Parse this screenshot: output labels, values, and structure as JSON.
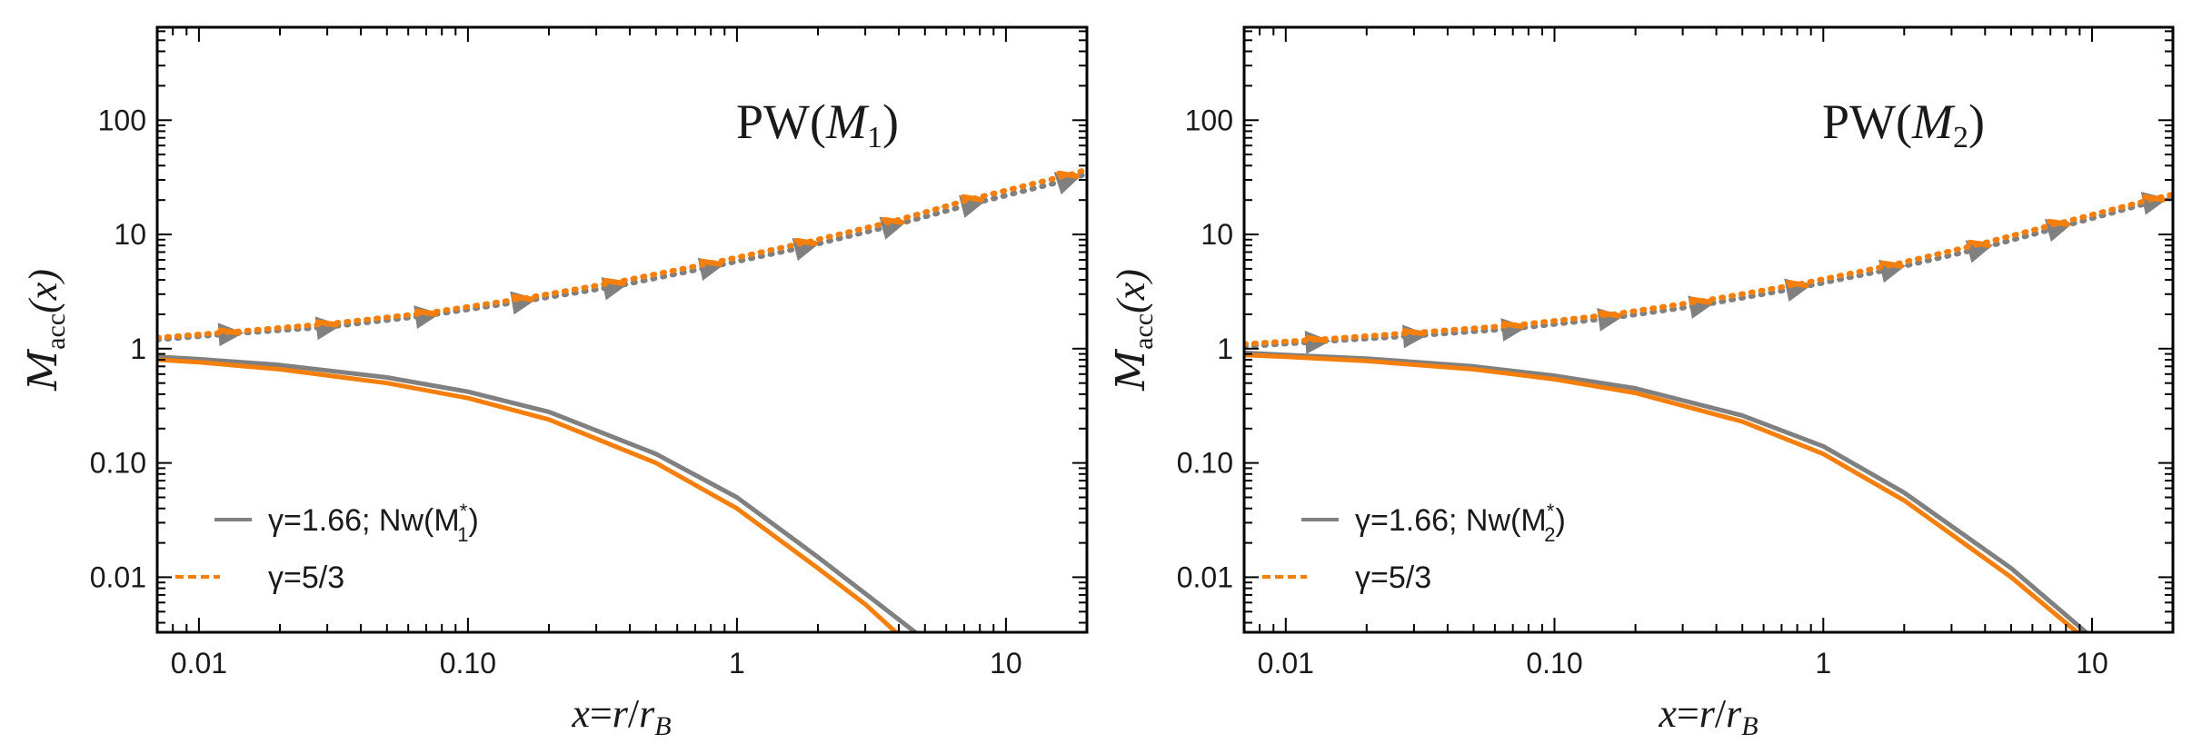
{
  "colors": {
    "gamma166": "#808080",
    "gamma53": "#f57f0d"
  },
  "chart_data": [
    {
      "type": "line",
      "title": "PW(M1)",
      "title_main": "PW(",
      "title_var": "M",
      "title_sub": "1",
      "title_close": ")",
      "xlabel": "x=r/r_B",
      "xlabel_parts": {
        "a": "x",
        "eq": "=",
        "b": "r",
        "slash": "/",
        "c": "r",
        "sub": "B"
      },
      "ylabel": "M_acc(x)",
      "ylabel_parts": {
        "sym": "M",
        "sub": "acc",
        "arg": "(x)"
      },
      "x_scale": "log",
      "y_scale": "log",
      "xlim": [
        0.007,
        20
      ],
      "ylim": [
        0.0033,
        650
      ],
      "x_ticks": [
        0.01,
        0.1,
        1,
        10
      ],
      "x_tick_labels": [
        "0.01",
        "0.10",
        "1",
        "10"
      ],
      "y_ticks": [
        0.01,
        0.1,
        1,
        10,
        100
      ],
      "y_tick_labels": [
        "0.01",
        "0.10",
        "1",
        "10",
        "100"
      ],
      "grid": false,
      "legend_position": "bottom-left",
      "legend": [
        {
          "text_prefix": "γ=1.66; Nw(M",
          "text_sup": "*",
          "text_sub": "1",
          "text_suffix": ")",
          "style": "solid",
          "color": "#808080"
        },
        {
          "text_prefix": "γ=5/3",
          "style": "dashed",
          "color": "#f57f0d"
        }
      ],
      "series": [
        {
          "legend_index": 0,
          "style": "solid",
          "color": "#808080",
          "x": [
            0.007,
            0.01,
            0.02,
            0.05,
            0.1,
            0.2,
            0.5,
            1,
            2,
            3,
            4.6
          ],
          "y": [
            0.85,
            0.81,
            0.72,
            0.56,
            0.42,
            0.28,
            0.12,
            0.05,
            0.015,
            0.0072,
            0.0033
          ]
        },
        {
          "legend_index": 1,
          "style": "solid",
          "color": "#f57f0d",
          "x": [
            0.007,
            0.01,
            0.02,
            0.05,
            0.1,
            0.2,
            0.5,
            1,
            2,
            3,
            3.9
          ],
          "y": [
            0.8,
            0.76,
            0.66,
            0.5,
            0.37,
            0.24,
            0.1,
            0.04,
            0.012,
            0.0058,
            0.0033
          ]
        },
        {
          "style": "dotted-triangles",
          "color": "#808080",
          "x": [
            0.007,
            0.013,
            0.03,
            0.07,
            0.16,
            0.35,
            0.8,
            1.8,
            3.8,
            7.5,
            17,
            20
          ],
          "y": [
            1.2,
            1.35,
            1.55,
            1.95,
            2.6,
            3.5,
            5.2,
            7.8,
            12.0,
            18.5,
            30.0,
            34.0
          ]
        },
        {
          "style": "dotted",
          "color": "#f57f0d",
          "x": [
            0.007,
            0.013,
            0.03,
            0.07,
            0.16,
            0.35,
            0.8,
            1.8,
            3.8,
            7.5,
            17,
            20
          ],
          "y": [
            1.25,
            1.4,
            1.65,
            2.05,
            2.75,
            3.8,
            5.6,
            8.5,
            13.0,
            20.5,
            33.0,
            37.0
          ]
        }
      ]
    },
    {
      "type": "line",
      "title": "PW(M2)",
      "title_main": "PW(",
      "title_var": "M",
      "title_sub": "2",
      "title_close": ")",
      "xlabel": "x=r/r_B",
      "xlabel_parts": {
        "a": "x",
        "eq": "=",
        "b": "r",
        "slash": "/",
        "c": "r",
        "sub": "B"
      },
      "ylabel": "M_acc(x)",
      "ylabel_parts": {
        "sym": "M",
        "sub": "acc",
        "arg": "(x)"
      },
      "x_scale": "log",
      "y_scale": "log",
      "xlim": [
        0.007,
        20
      ],
      "ylim": [
        0.0033,
        650
      ],
      "x_ticks": [
        0.01,
        0.1,
        1,
        10
      ],
      "x_tick_labels": [
        "0.01",
        "0.10",
        "1",
        "10"
      ],
      "y_ticks": [
        0.01,
        0.1,
        1,
        10,
        100
      ],
      "y_tick_labels": [
        "0.01",
        "0.10",
        "1",
        "10",
        "100"
      ],
      "grid": false,
      "legend_position": "bottom-left",
      "legend": [
        {
          "text_prefix": "γ=1.66; Nw(M",
          "text_sup": "*",
          "text_sub": "2",
          "text_suffix": ")",
          "style": "solid",
          "color": "#808080"
        },
        {
          "text_prefix": "γ=5/3",
          "style": "dashed",
          "color": "#f57f0d"
        }
      ],
      "series": [
        {
          "legend_index": 0,
          "style": "solid",
          "color": "#808080",
          "x": [
            0.007,
            0.01,
            0.02,
            0.05,
            0.1,
            0.2,
            0.5,
            1,
            2,
            5,
            9.5
          ],
          "y": [
            0.92,
            0.88,
            0.82,
            0.7,
            0.58,
            0.45,
            0.26,
            0.14,
            0.055,
            0.012,
            0.0033
          ]
        },
        {
          "legend_index": 1,
          "style": "solid",
          "color": "#f57f0d",
          "x": [
            0.007,
            0.01,
            0.02,
            0.05,
            0.1,
            0.2,
            0.5,
            1,
            2,
            5,
            8.8
          ],
          "y": [
            0.88,
            0.85,
            0.78,
            0.66,
            0.54,
            0.41,
            0.23,
            0.12,
            0.047,
            0.01,
            0.0033
          ]
        },
        {
          "style": "dotted-triangles",
          "color": "#808080",
          "x": [
            0.007,
            0.013,
            0.03,
            0.07,
            0.16,
            0.35,
            0.8,
            1.8,
            3.8,
            7.5,
            17,
            20
          ],
          "y": [
            1.05,
            1.15,
            1.3,
            1.5,
            1.85,
            2.4,
            3.4,
            5.0,
            7.5,
            11.5,
            19.5,
            21.0
          ]
        },
        {
          "style": "dotted",
          "color": "#f57f0d",
          "x": [
            0.007,
            0.013,
            0.03,
            0.07,
            0.16,
            0.35,
            0.8,
            1.8,
            3.8,
            7.5,
            17,
            20
          ],
          "y": [
            1.1,
            1.2,
            1.38,
            1.6,
            1.98,
            2.6,
            3.65,
            5.4,
            8.2,
            12.5,
            20.5,
            22.5
          ]
        }
      ]
    }
  ]
}
